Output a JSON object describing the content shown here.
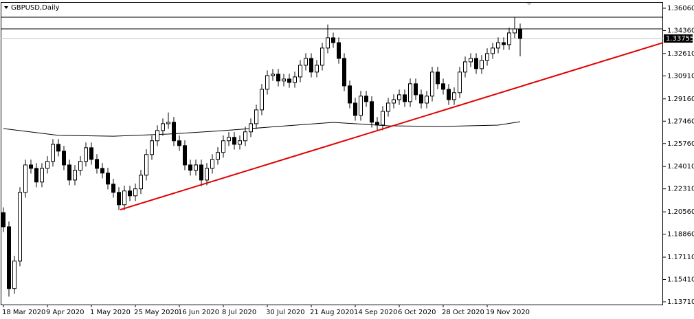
{
  "chart_data": {
    "type": "candlestick",
    "title": "GBPUSD,Daily",
    "open": [
      1.205,
      1.1942,
      1.1472,
      1.1681,
      1.2204,
      1.2413,
      1.2387,
      1.2283,
      1.2387,
      1.244,
      1.257,
      1.2518,
      1.2413,
      1.2298,
      1.2372,
      1.244,
      1.2544,
      1.2455,
      1.2387,
      1.2351,
      1.2267,
      1.2204,
      1.211,
      1.2215,
      1.2178,
      1.2231,
      1.2335,
      1.2492,
      1.2597,
      1.2675,
      1.2727,
      1.2738,
      1.2597,
      1.256,
      1.2413,
      1.2372,
      1.2413,
      1.2298,
      1.2387,
      1.2455,
      1.2508,
      1.2597,
      1.2623,
      1.257,
      1.2597,
      1.2665,
      1.2727,
      1.2832,
      1.2989,
      1.3093,
      1.3104,
      1.3052,
      1.3067,
      1.3041,
      1.3083,
      1.3172,
      1.3224,
      1.312,
      1.3172,
      1.3303,
      1.3381,
      1.3344,
      1.3224,
      1.3015,
      1.2884,
      1.279,
      1.2937,
      1.2895,
      1.2738,
      1.2717,
      1.2821,
      1.2884,
      1.291,
      1.2947,
      1.2895,
      1.3031,
      1.2947,
      1.2884,
      1.2937,
      1.312,
      1.3031,
      1.2989,
      1.291,
      1.2963,
      1.312,
      1.3198,
      1.3224,
      1.3146,
      1.3209,
      1.3261,
      1.3303,
      1.3344,
      1.3329,
      1.3418,
      1.3449
    ],
    "high": [
      1.209,
      1.1982,
      1.1721,
      1.2244,
      1.2453,
      1.2453,
      1.2427,
      1.2427,
      1.248,
      1.261,
      1.261,
      1.2558,
      1.2453,
      1.2412,
      1.248,
      1.2584,
      1.2584,
      1.2495,
      1.2427,
      1.2391,
      1.2307,
      1.2244,
      1.2255,
      1.2255,
      1.2271,
      1.2375,
      1.2532,
      1.2637,
      1.2715,
      1.2767,
      1.2812,
      1.2778,
      1.2637,
      1.26,
      1.2453,
      1.2453,
      1.2453,
      1.2427,
      1.2495,
      1.2548,
      1.2637,
      1.2663,
      1.2663,
      1.2637,
      1.2705,
      1.2767,
      1.2872,
      1.3029,
      1.3133,
      1.3144,
      1.3144,
      1.3107,
      1.3107,
      1.3123,
      1.3212,
      1.3264,
      1.3264,
      1.3212,
      1.3343,
      1.3482,
      1.3421,
      1.3384,
      1.3264,
      1.3055,
      1.2924,
      1.2977,
      1.2977,
      1.2935,
      1.2778,
      1.2861,
      1.2924,
      1.295,
      1.2987,
      1.2987,
      1.3071,
      1.3071,
      1.2987,
      1.2977,
      1.316,
      1.316,
      1.3071,
      1.3029,
      1.3003,
      1.316,
      1.3238,
      1.3264,
      1.3264,
      1.3249,
      1.3301,
      1.3343,
      1.3384,
      1.3384,
      1.3458,
      1.354,
      1.3489
    ],
    "low": [
      1.1902,
      1.141,
      1.1432,
      1.1641,
      1.2164,
      1.2347,
      1.2243,
      1.2243,
      1.2347,
      1.24,
      1.2478,
      1.2373,
      1.2258,
      1.2258,
      1.2332,
      1.24,
      1.2415,
      1.2347,
      1.2311,
      1.2227,
      1.2164,
      1.207,
      1.207,
      1.2138,
      1.2138,
      1.2191,
      1.2295,
      1.2452,
      1.2557,
      1.2635,
      1.2687,
      1.2557,
      1.252,
      1.2373,
      1.2332,
      1.2332,
      1.2251,
      1.2258,
      1.2347,
      1.2415,
      1.2468,
      1.2557,
      1.253,
      1.253,
      1.2557,
      1.2625,
      1.2687,
      1.2792,
      1.2949,
      1.3053,
      1.3012,
      1.3012,
      1.3001,
      1.3001,
      1.3043,
      1.3132,
      1.308,
      1.308,
      1.3132,
      1.3263,
      1.3304,
      1.3184,
      1.2975,
      1.2844,
      1.275,
      1.275,
      1.2855,
      1.2698,
      1.2677,
      1.2677,
      1.2781,
      1.2844,
      1.287,
      1.2855,
      1.2855,
      1.2907,
      1.2844,
      1.2844,
      1.2897,
      1.2991,
      1.2949,
      1.287,
      1.287,
      1.2923,
      1.308,
      1.3158,
      1.3106,
      1.3106,
      1.3169,
      1.3221,
      1.3263,
      1.3289,
      1.3289,
      1.3378,
      1.324
    ],
    "close": [
      1.1942,
      1.1472,
      1.1681,
      1.2204,
      1.2413,
      1.2387,
      1.2283,
      1.2387,
      1.244,
      1.257,
      1.2518,
      1.2413,
      1.2298,
      1.2372,
      1.244,
      1.2544,
      1.2455,
      1.2387,
      1.2351,
      1.2267,
      1.2204,
      1.211,
      1.2215,
      1.2178,
      1.2231,
      1.2335,
      1.2492,
      1.2597,
      1.2675,
      1.2727,
      1.2738,
      1.2597,
      1.256,
      1.2413,
      1.2372,
      1.2413,
      1.2298,
      1.2387,
      1.2455,
      1.2508,
      1.2597,
      1.2623,
      1.257,
      1.2597,
      1.2665,
      1.2727,
      1.2832,
      1.2989,
      1.3093,
      1.3104,
      1.3052,
      1.3067,
      1.3041,
      1.3083,
      1.3172,
      1.3224,
      1.312,
      1.3172,
      1.3303,
      1.3381,
      1.3344,
      1.3224,
      1.3015,
      1.2884,
      1.279,
      1.2937,
      1.2895,
      1.2738,
      1.2717,
      1.2821,
      1.2884,
      1.291,
      1.2947,
      1.2895,
      1.3031,
      1.2947,
      1.2884,
      1.2937,
      1.312,
      1.3031,
      1.2989,
      1.291,
      1.2963,
      1.312,
      1.3198,
      1.3224,
      1.3146,
      1.3209,
      1.3261,
      1.3303,
      1.3344,
      1.3329,
      1.3418,
      1.3449,
      1.3376
    ],
    "up_color": "#ffffff",
    "down_color": "#000000",
    "moving_average": {
      "x": [
        0,
        10,
        20,
        30,
        40,
        50,
        60,
        70,
        80,
        90,
        94
      ],
      "values": [
        1.269,
        1.2638,
        1.2632,
        1.2648,
        1.2674,
        1.2706,
        1.2737,
        1.2711,
        1.2706,
        1.2716,
        1.2742
      ],
      "color": "#000000"
    },
    "trendline": {
      "x": [
        21.25,
        120
      ],
      "values": [
        1.2072,
        1.3344
      ],
      "color": "#e00000"
    },
    "levels": [
      1.3538,
      1.3449
    ],
    "last_price": {
      "value": 1.33755,
      "label": "1.33755"
    },
    "xlim": [
      -0.5,
      120
    ],
    "ylim": [
      1.135,
      1.3653
    ],
    "yticks": [
      {
        "value": 1.3606,
        "label": "1.36060"
      },
      {
        "value": 1.3436,
        "label": "1.34360"
      },
      {
        "value": 1.3261,
        "label": "1.32610"
      },
      {
        "value": 1.3091,
        "label": "1.30910"
      },
      {
        "value": 1.2916,
        "label": "1.29160"
      },
      {
        "value": 1.2746,
        "label": "1.27460"
      },
      {
        "value": 1.2576,
        "label": "1.25760"
      },
      {
        "value": 1.2401,
        "label": "1.24010"
      },
      {
        "value": 1.2231,
        "label": "1.22310"
      },
      {
        "value": 1.2056,
        "label": "1.20560"
      },
      {
        "value": 1.1886,
        "label": "1.18860"
      },
      {
        "value": 1.1711,
        "label": "1.17110"
      },
      {
        "value": 1.1541,
        "label": "1.15410"
      },
      {
        "value": 1.1371,
        "label": "1.13710"
      }
    ],
    "xticks": [
      {
        "value": 0,
        "label": "18 Mar 2020"
      },
      {
        "value": 8,
        "label": "9 Apr 2020"
      },
      {
        "value": 16,
        "label": "1 May 2020"
      },
      {
        "value": 24,
        "label": "25 May 2020"
      },
      {
        "value": 32,
        "label": "16 Jun 2020"
      },
      {
        "value": 40,
        "label": "8 Jul 2020"
      },
      {
        "value": 48,
        "label": "30 Jul 2020"
      },
      {
        "value": 56,
        "label": "21 Aug 2020"
      },
      {
        "value": 64,
        "label": "14 Sep 2020"
      },
      {
        "value": 72,
        "label": "6 Oct 2020"
      },
      {
        "value": 80,
        "label": "28 Oct 2020"
      },
      {
        "value": 88,
        "label": "19 Nov 2020"
      }
    ]
  }
}
